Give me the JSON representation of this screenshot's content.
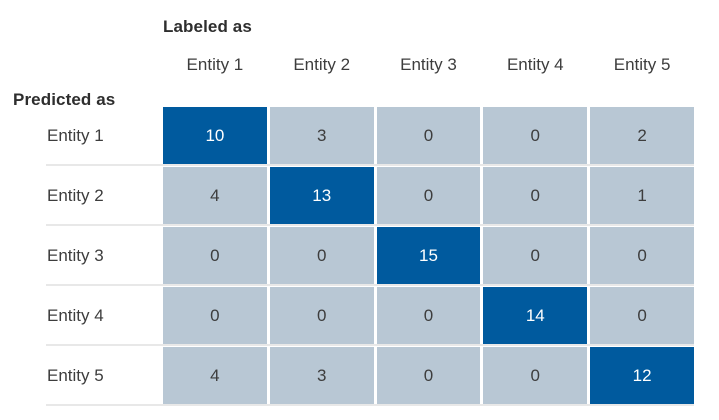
{
  "chart_data": {
    "type": "heatmap",
    "col_axis_label": "Labeled as",
    "row_axis_label": "Predicted as",
    "columns": [
      "Entity 1",
      "Entity 2",
      "Entity 3",
      "Entity 4",
      "Entity 5"
    ],
    "rows": [
      "Entity 1",
      "Entity 2",
      "Entity 3",
      "Entity 4",
      "Entity 5"
    ],
    "values": [
      [
        10,
        3,
        0,
        0,
        2
      ],
      [
        4,
        13,
        0,
        0,
        1
      ],
      [
        0,
        0,
        15,
        0,
        0
      ],
      [
        0,
        0,
        0,
        14,
        0
      ],
      [
        4,
        3,
        0,
        0,
        12
      ]
    ],
    "highlight": "diagonal",
    "colors": {
      "diagonal_cell": "#005A9E",
      "off_diagonal_cell": "#B8C7D4",
      "diagonal_text": "#FFFFFF",
      "off_diagonal_text": "#3D3D3D",
      "label_text": "#3D3D3D",
      "axis_label_text": "#2E2E2E",
      "separator_line": "#E8E8E8"
    }
  }
}
